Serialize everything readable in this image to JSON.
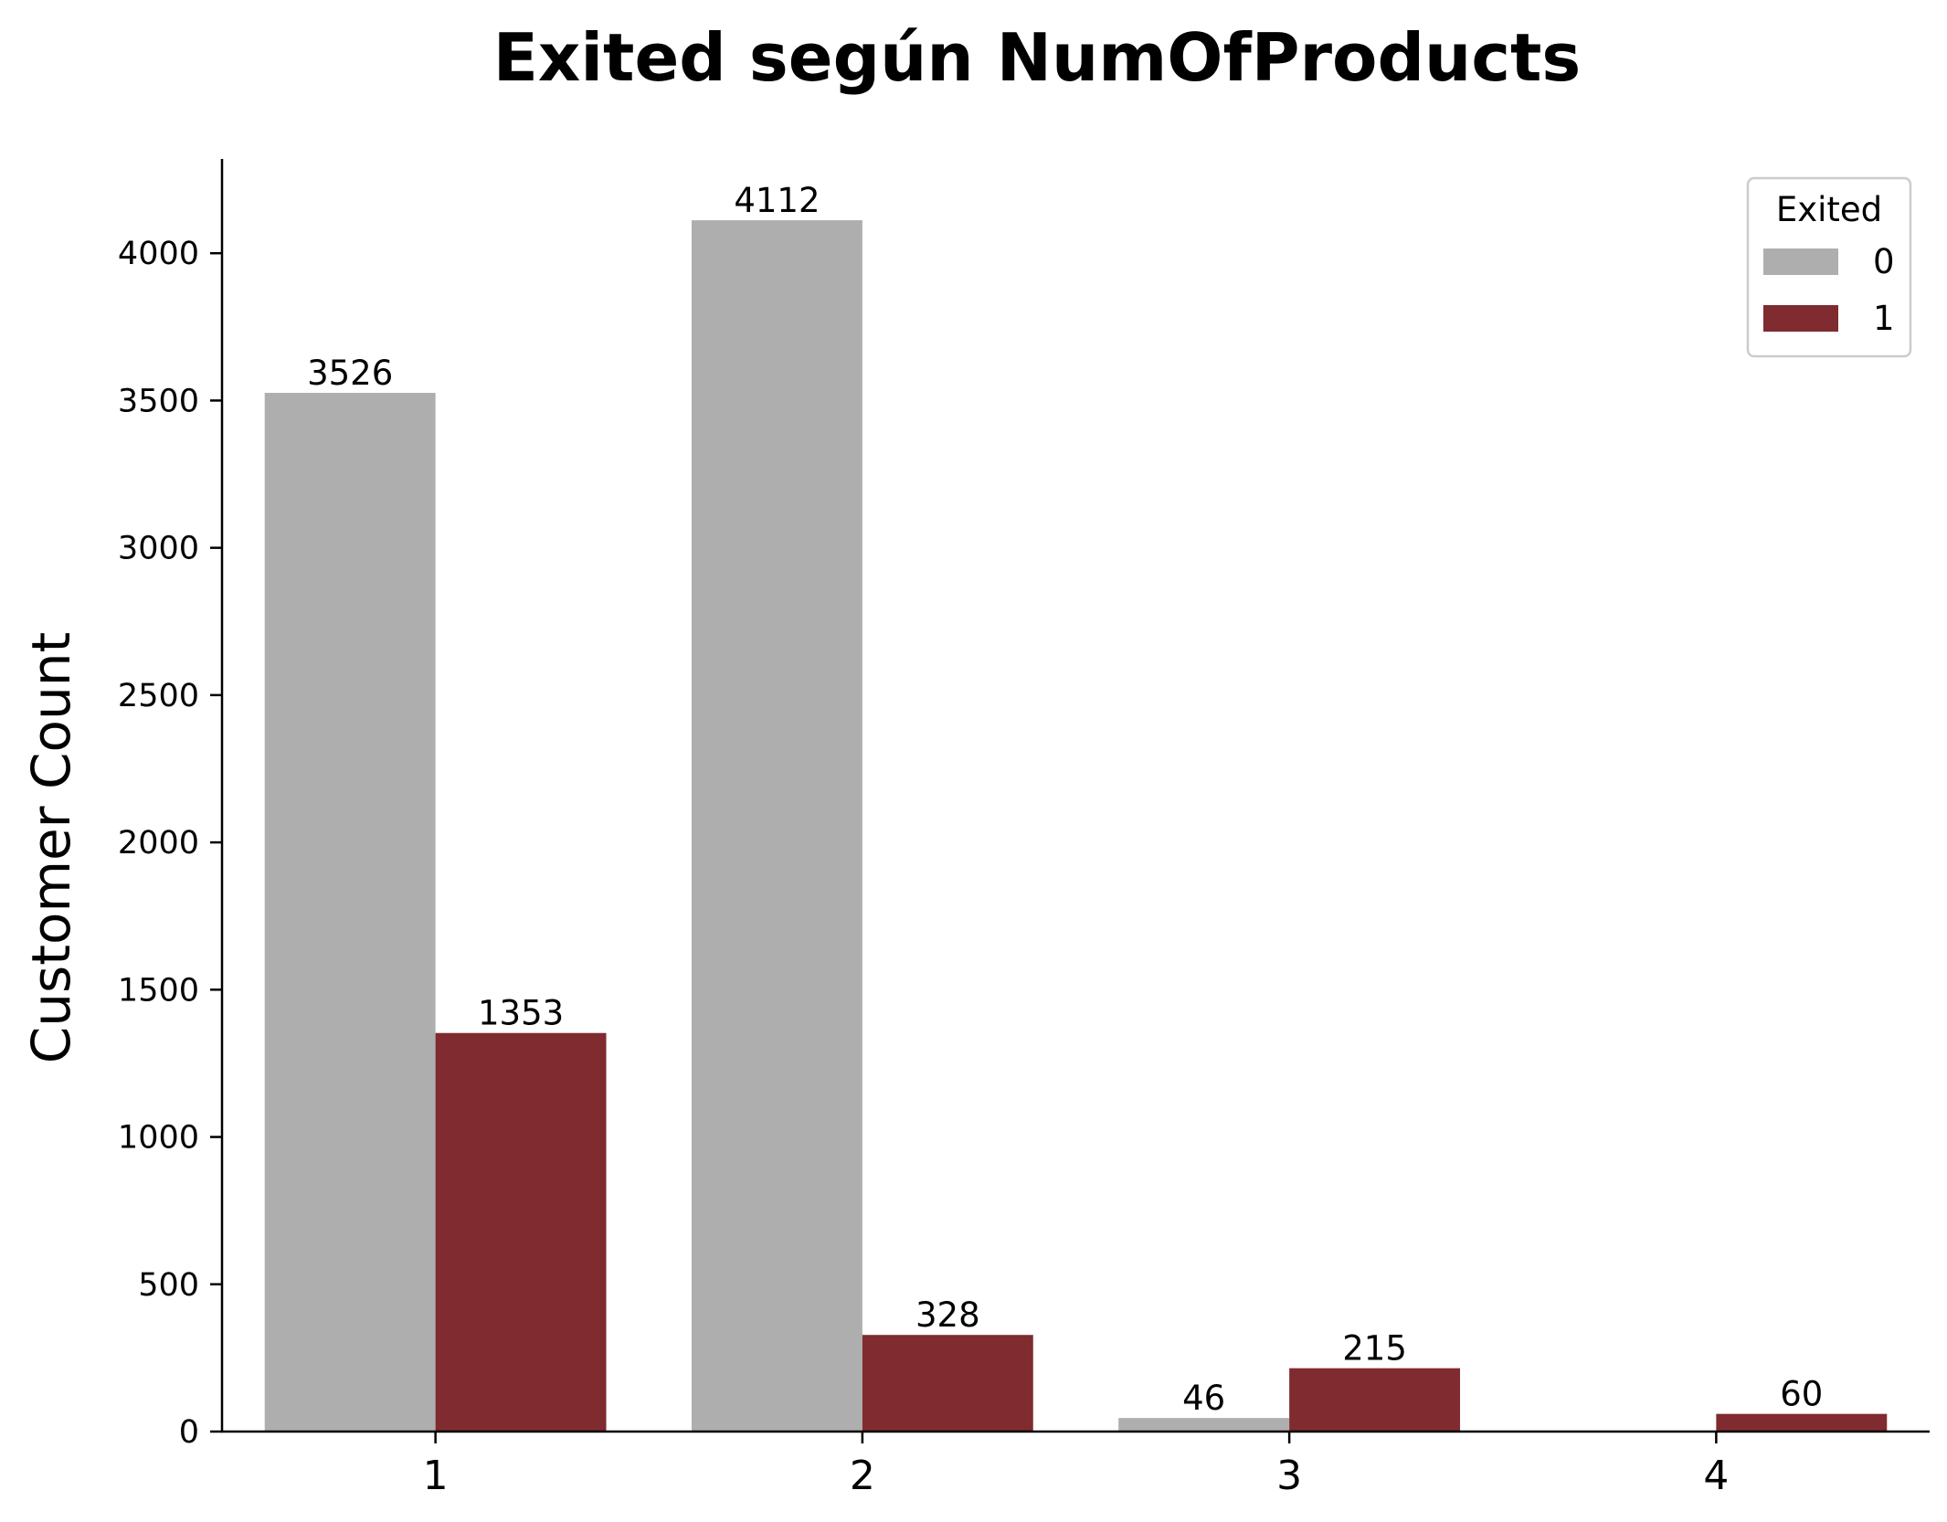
{
  "chart_data": {
    "type": "bar",
    "title": "Exited según NumOfProducts",
    "xlabel": "",
    "ylabel": "Customer Count",
    "categories": [
      "1",
      "2",
      "3",
      "4"
    ],
    "series": [
      {
        "name": "0",
        "values": [
          3526,
          4112,
          46,
          null
        ],
        "labels": [
          "3526",
          "4112",
          "46",
          ""
        ],
        "color": "#afaeaf"
      },
      {
        "name": "1",
        "values": [
          1353,
          328,
          215,
          60
        ],
        "labels": [
          "1353",
          "328",
          "215",
          "60"
        ],
        "color": "#7f2b2f"
      }
    ],
    "legend_title": "Exited",
    "legend_position": "top-right",
    "ylim": [
      0,
      4320
    ],
    "yticks": [
      0,
      500,
      1000,
      1500,
      2000,
      2500,
      3000,
      3500,
      4000
    ],
    "grid": false
  }
}
